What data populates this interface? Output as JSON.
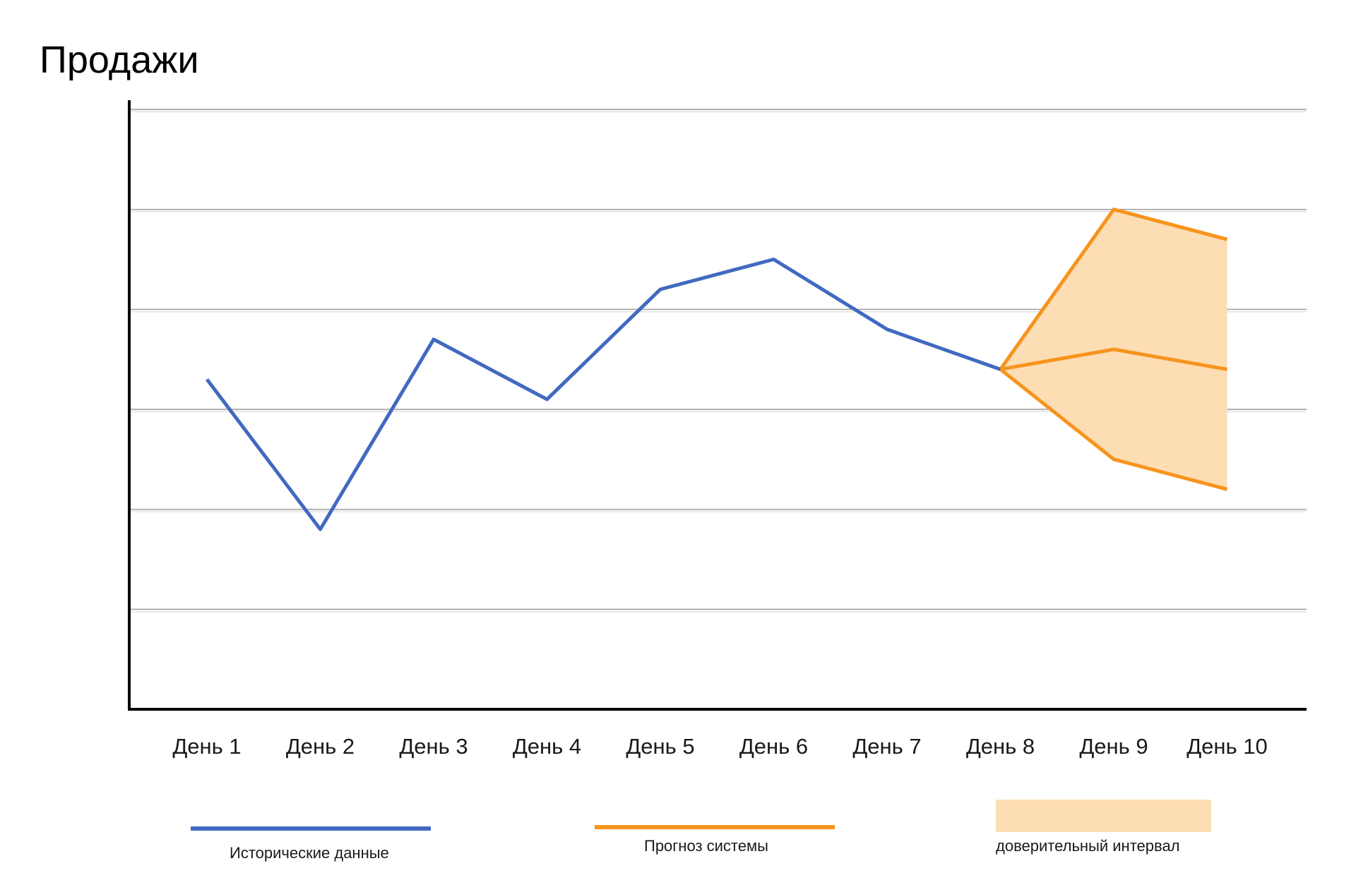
{
  "chart_data": {
    "type": "line",
    "title": "Продажи",
    "xlabel": "",
    "ylabel": "",
    "categories": [
      "День 1",
      "День 2",
      "День 3",
      "День 4",
      "День 5",
      "День 6",
      "День 7",
      "День 8",
      "День 9",
      "День 10"
    ],
    "ylim": [
      0,
      6
    ],
    "grid": true,
    "series": [
      {
        "name": "Исторические данные",
        "color": "#4169C1",
        "values": [
          3.3,
          1.8,
          3.7,
          3.1,
          4.2,
          4.5,
          3.8,
          3.4,
          null,
          null
        ]
      },
      {
        "name": "Прогноз системы",
        "color": "#F7941D",
        "values": [
          null,
          null,
          null,
          null,
          null,
          null,
          null,
          3.4,
          3.6,
          3.4
        ]
      }
    ],
    "confidence_interval": {
      "name": "доверительный интервал",
      "color": "#FDDDB4",
      "line_color": "#F7941D",
      "x_index": [
        7,
        8,
        9
      ],
      "lower": [
        3.4,
        2.5,
        2.2
      ],
      "upper": [
        3.4,
        5.0,
        4.7
      ]
    },
    "legend_position": "bottom"
  }
}
